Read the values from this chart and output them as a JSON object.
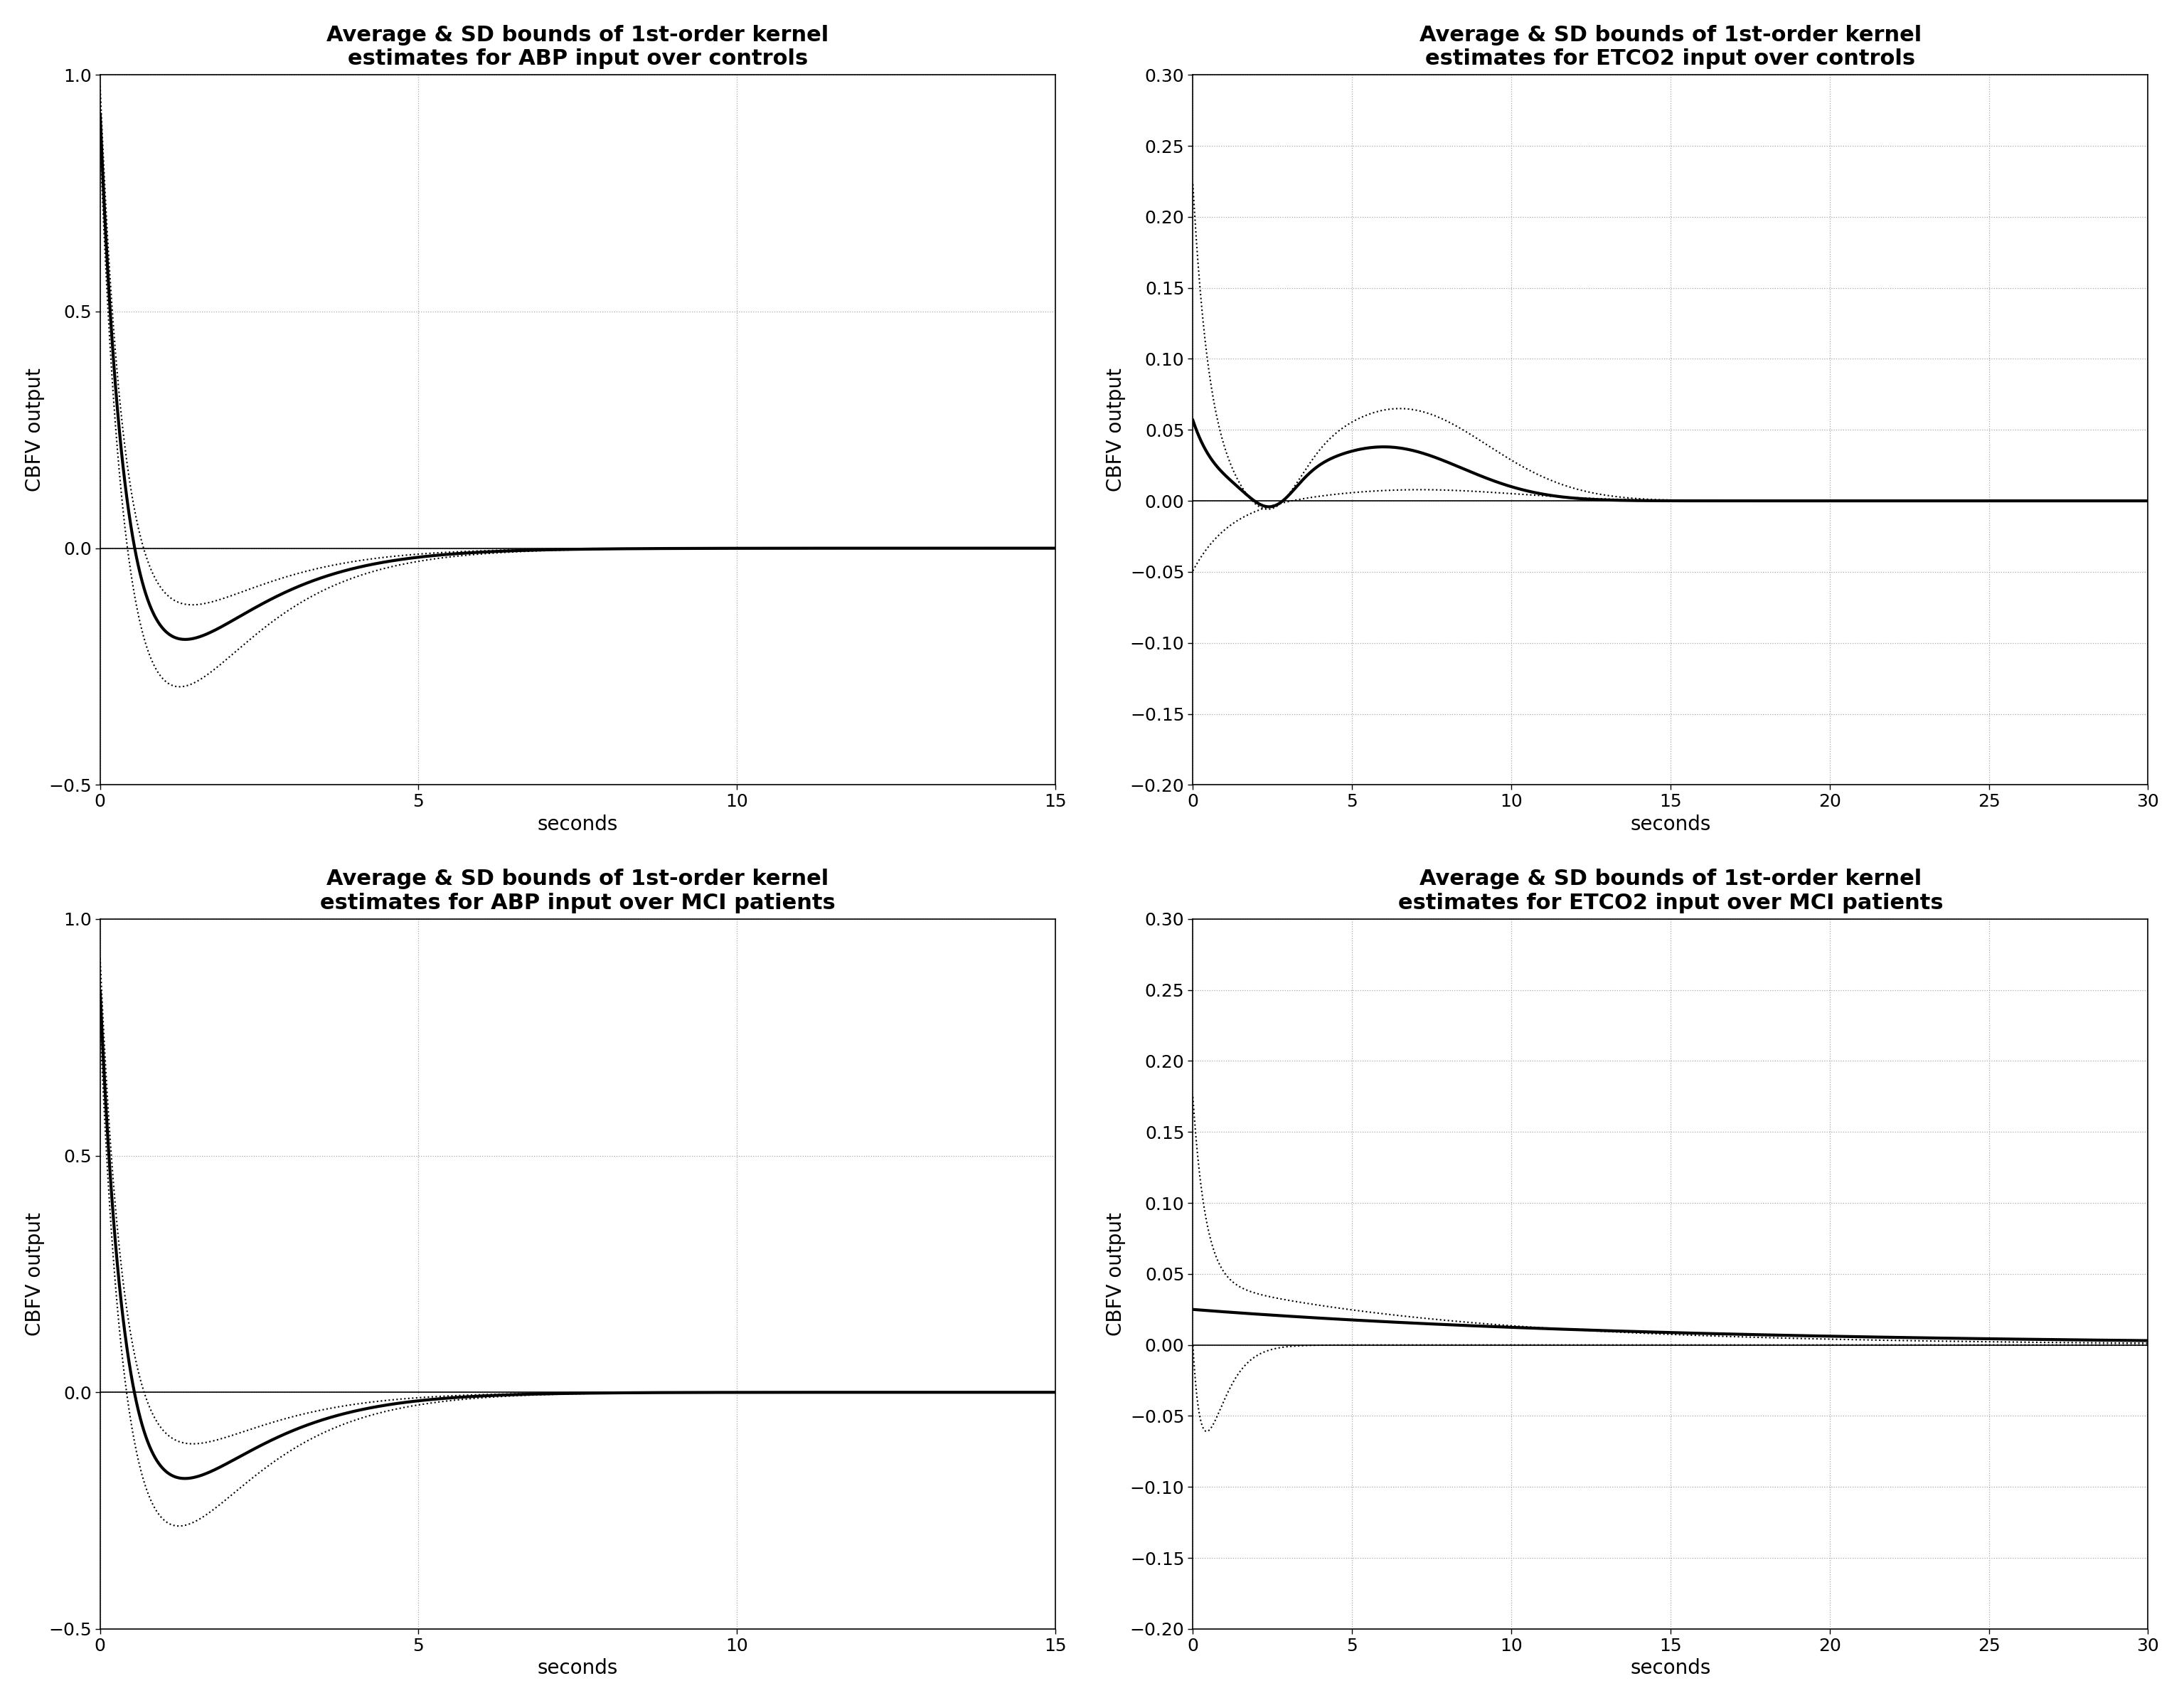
{
  "subplots": [
    {
      "title": "Average & SD bounds of 1st-order kernel\nestimates for ABP input over controls",
      "xlabel": "seconds",
      "ylabel": "CBFV output",
      "xlim": [
        0,
        15
      ],
      "ylim": [
        -0.5,
        1.0
      ],
      "xticks": [
        0,
        5,
        10,
        15
      ],
      "yticks": [
        -0.5,
        0,
        0.5,
        1.0
      ],
      "type": "abp_controls"
    },
    {
      "title": "Average & SD bounds of 1st-order kernel\nestimates for ETCO2 input over controls",
      "xlabel": "seconds",
      "ylabel": "CBFV output",
      "xlim": [
        0,
        30
      ],
      "ylim": [
        -0.2,
        0.3
      ],
      "xticks": [
        0,
        5,
        10,
        15,
        20,
        25,
        30
      ],
      "yticks": [
        -0.2,
        -0.15,
        -0.1,
        -0.05,
        0,
        0.05,
        0.1,
        0.15,
        0.2,
        0.25,
        0.3
      ],
      "type": "etco2_controls"
    },
    {
      "title": "Average & SD bounds of 1st-order kernel\nestimates for ABP input over MCI patients",
      "xlabel": "seconds",
      "ylabel": "CBFV output",
      "xlim": [
        0,
        15
      ],
      "ylim": [
        -0.5,
        1.0
      ],
      "xticks": [
        0,
        5,
        10,
        15
      ],
      "yticks": [
        -0.5,
        0,
        0.5,
        1.0
      ],
      "type": "abp_mci"
    },
    {
      "title": "Average & SD bounds of 1st-order kernel\nestimates for ETCO2 input over MCI patients",
      "xlabel": "seconds",
      "ylabel": "CBFV output",
      "xlim": [
        0,
        30
      ],
      "ylim": [
        -0.2,
        0.3
      ],
      "xticks": [
        0,
        5,
        10,
        15,
        20,
        25,
        30
      ],
      "yticks": [
        -0.2,
        -0.15,
        -0.1,
        -0.05,
        0,
        0.05,
        0.1,
        0.15,
        0.2,
        0.25,
        0.3
      ],
      "type": "etco2_mci"
    }
  ],
  "mean_linewidth": 3.0,
  "sd_linewidth": 1.5,
  "grid_color": "#aaaaaa",
  "background_color": "#ffffff",
  "title_fontsize": 22,
  "label_fontsize": 20,
  "tick_fontsize": 18
}
